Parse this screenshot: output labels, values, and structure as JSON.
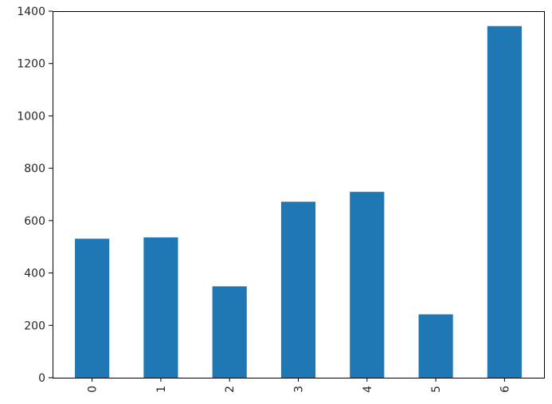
{
  "chart_data": {
    "type": "bar",
    "title": "",
    "xlabel": "",
    "ylabel": "",
    "categories": [
      "0",
      "1",
      "2",
      "3",
      "4",
      "5",
      "6"
    ],
    "values": [
      531,
      536,
      349,
      672,
      710,
      242,
      1343
    ],
    "ylim": [
      0,
      1400
    ],
    "yticks": [
      0,
      200,
      400,
      600,
      800,
      1000,
      1200,
      1400
    ],
    "ytick_labels": [
      "0",
      "200",
      "400",
      "600",
      "800",
      "1000",
      "1200",
      "1400"
    ],
    "xtick_rotation": "vertical",
    "bar_color": "#1f77b4",
    "grid": false,
    "legend": "none"
  }
}
